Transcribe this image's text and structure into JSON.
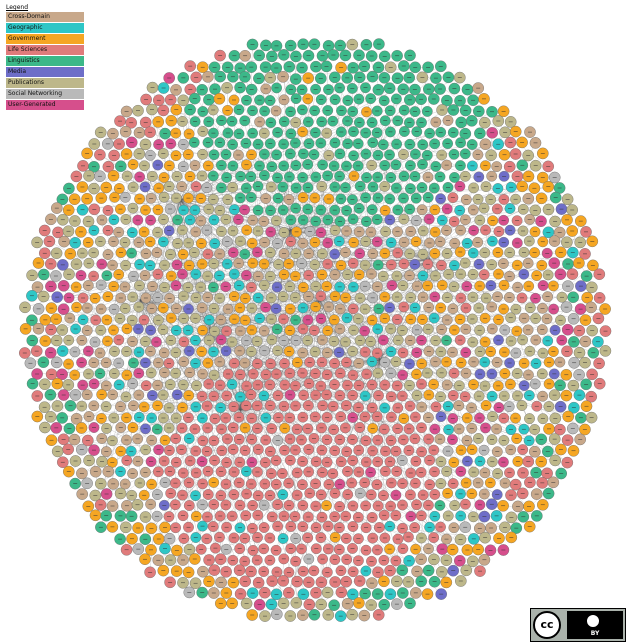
{
  "legend": {
    "title": "Legend",
    "items": [
      {
        "label": "Cross-Domain",
        "color": "#c8a88a"
      },
      {
        "label": "Geographic",
        "color": "#2ec6c6"
      },
      {
        "label": "Government",
        "color": "#f5a623"
      },
      {
        "label": "Life Sciences",
        "color": "#e07b7b"
      },
      {
        "label": "Linguistics",
        "color": "#3cb889"
      },
      {
        "label": "Media",
        "color": "#6e6ec8"
      },
      {
        "label": "Publications",
        "color": "#bdb78a"
      },
      {
        "label": "Social Networking",
        "color": "#b9b9b9"
      },
      {
        "label": "User-Generated",
        "color": "#d64f8c"
      }
    ]
  },
  "diagram": {
    "type": "network-cloud",
    "edge_color": "#555555",
    "node_outline": "#6a6a6a"
  },
  "license": {
    "badge_left": "cc",
    "badge_right": "BY"
  }
}
